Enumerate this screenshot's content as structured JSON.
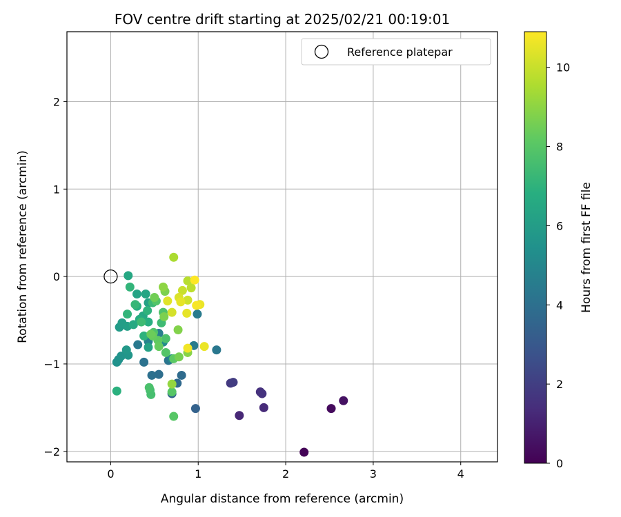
{
  "chart_data": {
    "type": "scatter",
    "title": "FOV centre drift starting at 2025/02/21 00:19:01",
    "xlabel": "Angular distance from reference (arcmin)",
    "ylabel": "Rotation from reference (arcmin)",
    "xlim": [
      -0.5,
      4.42
    ],
    "ylim": [
      -2.12,
      2.8
    ],
    "xticks": [
      0,
      1,
      2,
      3,
      4
    ],
    "yticks": [
      -2,
      -1,
      0,
      1,
      2
    ],
    "grid": true,
    "legend": {
      "position": "top-right",
      "entries": [
        "Reference platepar"
      ]
    },
    "colorbar": {
      "label": "Hours from first FF file",
      "colormap": "viridis",
      "min": 0,
      "max": 10.9,
      "ticks": [
        0,
        2,
        4,
        6,
        8,
        10
      ]
    },
    "reference_point": {
      "x": 0,
      "y": 0
    },
    "points": [
      {
        "x": 2.21,
        "y": -2.01,
        "c": 0.1
      },
      {
        "x": 2.52,
        "y": -1.51,
        "c": 0.3
      },
      {
        "x": 2.66,
        "y": -1.42,
        "c": 0.5
      },
      {
        "x": 1.47,
        "y": -1.59,
        "c": 1.2
      },
      {
        "x": 1.75,
        "y": -1.5,
        "c": 1.3
      },
      {
        "x": 1.71,
        "y": -1.32,
        "c": 1.5
      },
      {
        "x": 1.73,
        "y": -1.34,
        "c": 1.6
      },
      {
        "x": 1.37,
        "y": -1.22,
        "c": 1.8
      },
      {
        "x": 1.4,
        "y": -1.21,
        "c": 1.9
      },
      {
        "x": 0.97,
        "y": -1.51,
        "c": 3.4
      },
      {
        "x": 0.7,
        "y": -1.34,
        "c": 3.5
      },
      {
        "x": 0.76,
        "y": -1.22,
        "c": 3.7
      },
      {
        "x": 0.81,
        "y": -1.13,
        "c": 3.8
      },
      {
        "x": 0.55,
        "y": -1.12,
        "c": 3.9
      },
      {
        "x": 0.47,
        "y": -1.13,
        "c": 4.0
      },
      {
        "x": 0.38,
        "y": -0.98,
        "c": 4.1
      },
      {
        "x": 0.66,
        "y": -0.96,
        "c": 4.2
      },
      {
        "x": 1.21,
        "y": -0.84,
        "c": 4.3
      },
      {
        "x": 0.31,
        "y": -0.78,
        "c": 4.4
      },
      {
        "x": 0.95,
        "y": -0.79,
        "c": 4.5
      },
      {
        "x": 0.99,
        "y": -0.43,
        "c": 4.5
      },
      {
        "x": 0.55,
        "y": -0.65,
        "c": 4.6
      },
      {
        "x": 0.43,
        "y": -0.74,
        "c": 4.8
      },
      {
        "x": 0.7,
        "y": -0.94,
        "c": 5.0
      },
      {
        "x": 0.6,
        "y": -0.75,
        "c": 5.2
      },
      {
        "x": 0.09,
        "y": -0.95,
        "c": 5.4
      },
      {
        "x": 0.07,
        "y": -0.98,
        "c": 5.5
      },
      {
        "x": 0.12,
        "y": -0.91,
        "c": 5.6
      },
      {
        "x": 0.2,
        "y": -0.9,
        "c": 5.7
      },
      {
        "x": 0.18,
        "y": -0.84,
        "c": 5.8
      },
      {
        "x": 0.1,
        "y": -0.58,
        "c": 5.9
      },
      {
        "x": 0.13,
        "y": -0.53,
        "c": 6.0
      },
      {
        "x": 0.19,
        "y": -0.57,
        "c": 6.1
      },
      {
        "x": 0.43,
        "y": -0.81,
        "c": 6.2
      },
      {
        "x": 0.43,
        "y": -0.3,
        "c": 6.2
      },
      {
        "x": 0.3,
        "y": -0.2,
        "c": 6.3
      },
      {
        "x": 0.4,
        "y": -0.2,
        "c": 6.4
      },
      {
        "x": 0.37,
        "y": -0.45,
        "c": 6.5
      },
      {
        "x": 0.2,
        "y": 0.01,
        "c": 6.5
      },
      {
        "x": 0.26,
        "y": -0.55,
        "c": 6.6
      },
      {
        "x": 0.33,
        "y": -0.49,
        "c": 6.7
      },
      {
        "x": 0.43,
        "y": -0.52,
        "c": 6.8
      },
      {
        "x": 0.3,
        "y": -0.34,
        "c": 6.8
      },
      {
        "x": 0.07,
        "y": -1.31,
        "c": 6.9
      },
      {
        "x": 0.38,
        "y": -0.68,
        "c": 7.0
      },
      {
        "x": 0.42,
        "y": -0.39,
        "c": 7.0
      },
      {
        "x": 0.22,
        "y": -0.12,
        "c": 7.1
      },
      {
        "x": 0.19,
        "y": -0.43,
        "c": 7.1
      },
      {
        "x": 0.28,
        "y": -0.32,
        "c": 7.2
      },
      {
        "x": 0.48,
        "y": -0.3,
        "c": 7.3
      },
      {
        "x": 0.35,
        "y": -0.52,
        "c": 7.4
      },
      {
        "x": 0.58,
        "y": -0.53,
        "c": 7.4
      },
      {
        "x": 0.45,
        "y": -1.3,
        "c": 7.5
      },
      {
        "x": 0.46,
        "y": -1.35,
        "c": 7.6
      },
      {
        "x": 0.44,
        "y": -1.27,
        "c": 7.7
      },
      {
        "x": 0.63,
        "y": -0.71,
        "c": 7.7
      },
      {
        "x": 0.49,
        "y": -0.64,
        "c": 7.8
      },
      {
        "x": 0.6,
        "y": -0.41,
        "c": 7.8
      },
      {
        "x": 0.52,
        "y": -0.28,
        "c": 7.9
      },
      {
        "x": 0.63,
        "y": -0.87,
        "c": 7.9
      },
      {
        "x": 0.7,
        "y": -1.32,
        "c": 8.0
      },
      {
        "x": 0.72,
        "y": -1.6,
        "c": 8.0
      },
      {
        "x": 0.72,
        "y": -0.94,
        "c": 8.1
      },
      {
        "x": 0.54,
        "y": -0.73,
        "c": 8.2
      },
      {
        "x": 0.55,
        "y": -0.8,
        "c": 8.3
      },
      {
        "x": 0.48,
        "y": -0.68,
        "c": 8.3
      },
      {
        "x": 0.46,
        "y": -0.66,
        "c": 8.4
      },
      {
        "x": 0.5,
        "y": -0.24,
        "c": 8.5
      },
      {
        "x": 0.78,
        "y": -0.92,
        "c": 8.6
      },
      {
        "x": 0.61,
        "y": -0.46,
        "c": 8.7
      },
      {
        "x": 0.62,
        "y": -0.17,
        "c": 8.7
      },
      {
        "x": 0.77,
        "y": -0.61,
        "c": 8.8
      },
      {
        "x": 0.88,
        "y": -0.87,
        "c": 8.9
      },
      {
        "x": 0.6,
        "y": -0.12,
        "c": 9.0
      },
      {
        "x": 0.7,
        "y": -1.23,
        "c": 9.1
      },
      {
        "x": 0.72,
        "y": 0.22,
        "c": 9.5
      },
      {
        "x": 0.88,
        "y": -0.05,
        "c": 9.7
      },
      {
        "x": 0.92,
        "y": -0.13,
        "c": 9.8
      },
      {
        "x": 0.82,
        "y": -0.16,
        "c": 10.0
      },
      {
        "x": 0.88,
        "y": -0.27,
        "c": 10.1
      },
      {
        "x": 0.7,
        "y": -0.41,
        "c": 10.2
      },
      {
        "x": 0.78,
        "y": -0.24,
        "c": 10.3
      },
      {
        "x": 0.65,
        "y": -0.28,
        "c": 10.4
      },
      {
        "x": 0.87,
        "y": -0.42,
        "c": 10.5
      },
      {
        "x": 0.8,
        "y": -0.29,
        "c": 10.5
      },
      {
        "x": 1.07,
        "y": -0.8,
        "c": 10.6
      },
      {
        "x": 1.02,
        "y": -0.32,
        "c": 10.6
      },
      {
        "x": 0.88,
        "y": -0.82,
        "c": 10.7
      },
      {
        "x": 0.98,
        "y": -0.33,
        "c": 10.8
      },
      {
        "x": 0.96,
        "y": -0.04,
        "c": 10.9
      }
    ]
  }
}
